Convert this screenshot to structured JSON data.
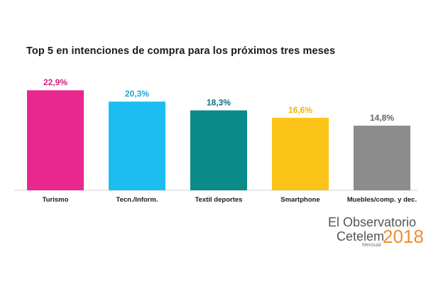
{
  "title": "Top 5 en intenciones de compra para los próximos tres meses",
  "chart_data": {
    "type": "bar",
    "title": "Top 5 en intenciones de compra para los próximos tres meses",
    "categories": [
      "Turismo",
      "Tecn./Inform.",
      "Textil deportes",
      "Smartphone",
      "Muebles/comp. y dec."
    ],
    "values": [
      22.9,
      20.3,
      18.3,
      16.6,
      14.8
    ],
    "labels": [
      "22,9%",
      "20,3%",
      "18,3%",
      "16,6%",
      "14,8%"
    ],
    "colors": [
      "#e8288f",
      "#1cbdf0",
      "#0b8a8a",
      "#fcc419",
      "#8c8c8c"
    ],
    "label_colors": [
      "#d21f7f",
      "#1aa8da",
      "#0e6f7a",
      "#f4b400",
      "#666666"
    ],
    "ylim": [
      0,
      25
    ],
    "grid": false,
    "legend": "none"
  },
  "brand": {
    "line1": "El Observatorio",
    "line2": "Cetelem",
    "sub": "Mensual",
    "year": "2018"
  }
}
